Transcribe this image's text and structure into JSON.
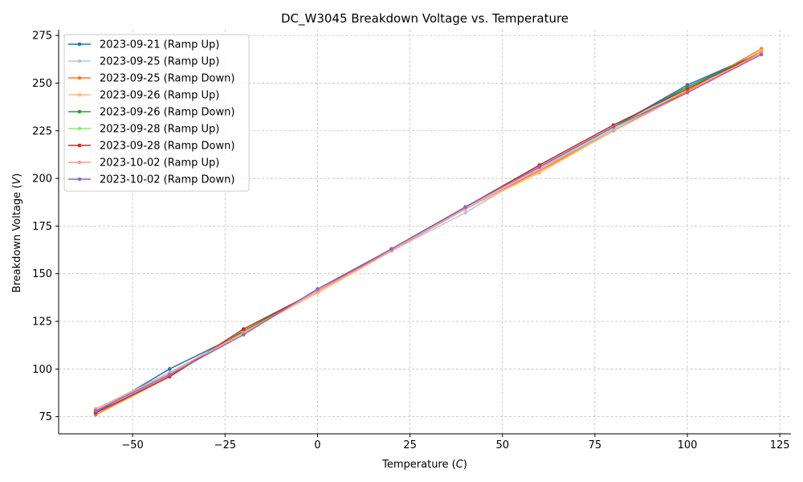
{
  "chart_data": {
    "type": "line",
    "title": "DC_W3045 Breakdown Voltage vs. Temperature",
    "xlabel": "Temperature (",
    "xlabel_unit": "C",
    "ylabel": "Breakdown Voltage (",
    "ylabel_unit": "V",
    "label_close": ")",
    "xlim": [
      -70,
      128
    ],
    "ylim": [
      66,
      278
    ],
    "xticks": [
      -50,
      -25,
      0,
      25,
      50,
      75,
      100,
      125
    ],
    "xtick_labels": [
      "−50",
      "−25",
      "0",
      "25",
      "50",
      "75",
      "100",
      "125"
    ],
    "yticks": [
      75,
      100,
      125,
      150,
      175,
      200,
      225,
      250,
      275
    ],
    "ytick_labels": [
      "75",
      "100",
      "125",
      "150",
      "175",
      "200",
      "225",
      "250",
      "275"
    ],
    "grid": true,
    "legend_position": "top-left",
    "x": [
      -60,
      -40,
      -20,
      0,
      20,
      40,
      60,
      80,
      100,
      120
    ],
    "series": [
      {
        "name": "2023-09-21 (Ramp Up)",
        "color": "#1f77b4",
        "values": [
          77,
          100,
          119,
          141,
          163,
          185,
          206,
          227,
          249,
          266
        ]
      },
      {
        "name": "2023-09-25 (Ramp Up)",
        "color": "#aec7e8",
        "values": [
          78,
          98,
          119,
          140,
          162,
          182,
          205,
          226,
          246,
          265
        ]
      },
      {
        "name": "2023-09-25 (Ramp Down)",
        "color": "#ff7f0e",
        "values": [
          76,
          96,
          120,
          141,
          162,
          184,
          204,
          225,
          246,
          268
        ]
      },
      {
        "name": "2023-09-26 (Ramp Up)",
        "color": "#ffbb78",
        "values": [
          78,
          97,
          119,
          140,
          162,
          184,
          203,
          225,
          245,
          267
        ]
      },
      {
        "name": "2023-09-26 (Ramp Down)",
        "color": "#2ca02c",
        "values": [
          77,
          96,
          120,
          141,
          163,
          185,
          206,
          227,
          248,
          266
        ]
      },
      {
        "name": "2023-09-28 (Ramp Up)",
        "color": "#98df8a",
        "values": [
          78,
          97,
          119,
          141,
          163,
          184,
          205,
          226,
          247,
          266
        ]
      },
      {
        "name": "2023-09-28 (Ramp Down)",
        "color": "#d62728",
        "values": [
          77,
          96,
          121,
          141,
          163,
          185,
          207,
          228,
          247,
          266
        ]
      },
      {
        "name": "2023-10-02 (Ramp Up)",
        "color": "#ff9896",
        "values": [
          79,
          98,
          119,
          141,
          162,
          184,
          205,
          225,
          245,
          266
        ]
      },
      {
        "name": "2023-10-02 (Ramp Down)",
        "color": "#9467bd",
        "values": [
          78,
          97,
          118,
          142,
          163,
          185,
          206,
          227,
          245,
          265
        ]
      }
    ]
  }
}
